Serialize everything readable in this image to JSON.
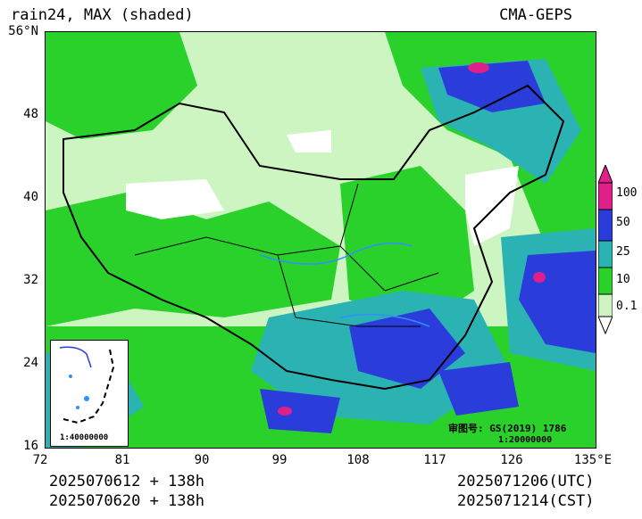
{
  "header": {
    "title": "rain24, MAX (shaded)",
    "model": "CMA-GEPS"
  },
  "axes": {
    "y_ticks": [
      "56°N",
      "48",
      "40",
      "32",
      "24",
      "16"
    ],
    "x_ticks": [
      "72",
      "81",
      "90",
      "99",
      "108",
      "117",
      "126",
      "135°E"
    ]
  },
  "footer": {
    "init_utc": "2025070612 + 138h",
    "init_cst": "2025070620 + 138h",
    "valid_utc": "2025071206(UTC)",
    "valid_cst": "2025071214(CST)"
  },
  "inset": {
    "scale": "1:40000000"
  },
  "review": {
    "number": "审图号: GS(2019) 1786",
    "scale": "1:20000000"
  },
  "legend": {
    "levels": [
      "100",
      "50",
      "25",
      "10",
      "0.1"
    ],
    "colors": {
      "white": "#ffffff",
      "light_green": "#cdf5c2",
      "green": "#2bd12b",
      "teal": "#2bb2b2",
      "blue": "#2a3ddb",
      "magenta": "#e0208a"
    }
  }
}
